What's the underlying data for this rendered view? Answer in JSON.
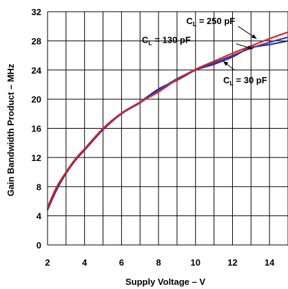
{
  "chart_data": {
    "type": "line",
    "xlabel": "Supply Voltage – V",
    "ylabel": "Gain Bandwidth Product – MHz",
    "xlim": [
      2,
      15
    ],
    "ylim": [
      0,
      32
    ],
    "x_ticks": [
      "2",
      "4",
      "6",
      "8",
      "10",
      "12",
      "14"
    ],
    "y_ticks": [
      "0",
      "4",
      "8",
      "12",
      "16",
      "20",
      "24",
      "28",
      "32"
    ],
    "grid": true,
    "series": [
      {
        "name": "CL = 30 pF",
        "color": "#2e2e8f",
        "x": [
          2,
          2.5,
          3,
          3.5,
          4,
          5,
          6,
          7,
          8,
          9,
          10,
          10.5,
          11,
          12,
          12.5,
          13,
          14,
          15
        ],
        "y": [
          4.8,
          7.6,
          9.8,
          11.6,
          13.0,
          15.8,
          18.0,
          19.6,
          21.4,
          22.6,
          24.0,
          24.4,
          24.8,
          25.8,
          26.5,
          27.1,
          27.5,
          28.0
        ]
      },
      {
        "name": "CL = 130 pF",
        "color": "#3a3aa8",
        "x": [
          2,
          2.5,
          3,
          3.5,
          4,
          5,
          6,
          7,
          8,
          9,
          10,
          11,
          12,
          13,
          14,
          15
        ],
        "y": [
          5.0,
          7.8,
          9.9,
          11.7,
          13.1,
          15.9,
          18.0,
          19.5,
          21.2,
          22.8,
          24.0,
          25.0,
          26.0,
          27.0,
          27.8,
          28.5
        ]
      },
      {
        "name": "CL = 250 pF",
        "color": "#e0202a",
        "x": [
          2,
          2.5,
          3,
          3.5,
          4,
          5,
          6,
          7,
          8,
          9,
          10,
          11,
          12,
          13,
          14,
          15
        ],
        "y": [
          5.2,
          8.0,
          10.0,
          11.8,
          13.2,
          16.0,
          18.1,
          19.6,
          21.0,
          22.7,
          24.1,
          25.2,
          26.3,
          27.3,
          28.3,
          29.2
        ]
      }
    ],
    "annotations": [
      {
        "main": "C",
        "sub": "L",
        "rest": " = 250 pF",
        "x": 9.5,
        "y": 30.3
      },
      {
        "main": "C",
        "sub": "L",
        "rest": " = 130 pF",
        "x": 7.1,
        "y": 27.7
      },
      {
        "main": "C",
        "sub": "L",
        "rest": " = 30 pF",
        "x": 11.5,
        "y": 22.2
      }
    ]
  }
}
